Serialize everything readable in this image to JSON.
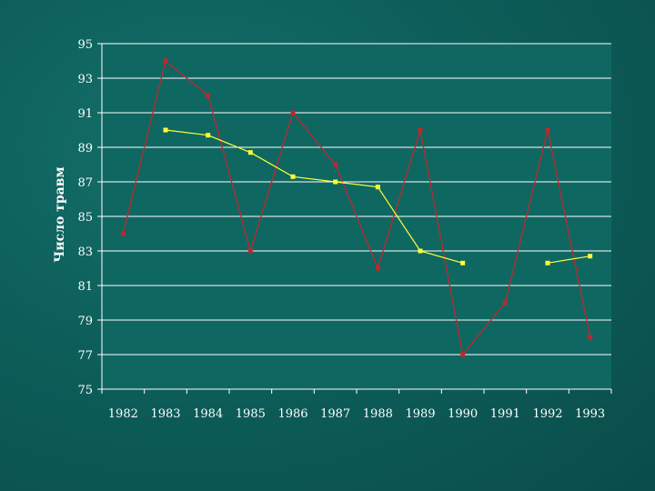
{
  "chart_data": {
    "type": "line",
    "title": "",
    "xlabel": "",
    "ylabel": "Число травм",
    "categories": [
      "1982",
      "1983",
      "1984",
      "1985",
      "1986",
      "1987",
      "1988",
      "1989",
      "1990",
      "1991",
      "1992",
      "1993"
    ],
    "ylim": [
      75,
      95
    ],
    "yticks": [
      75,
      77,
      79,
      81,
      83,
      85,
      87,
      89,
      91,
      93,
      95
    ],
    "grid": true,
    "legend": "none",
    "series": [
      {
        "color": "#c0272d",
        "marker": "square",
        "values": [
          84,
          94,
          92,
          83,
          91,
          88,
          82,
          90,
          77,
          80,
          90,
          78
        ]
      },
      {
        "color": "#ffff33",
        "marker": "square",
        "values": [
          null,
          90,
          89.7,
          88.7,
          87.3,
          87,
          86.7,
          83,
          82.3,
          null,
          82.3,
          82.7
        ]
      }
    ]
  }
}
